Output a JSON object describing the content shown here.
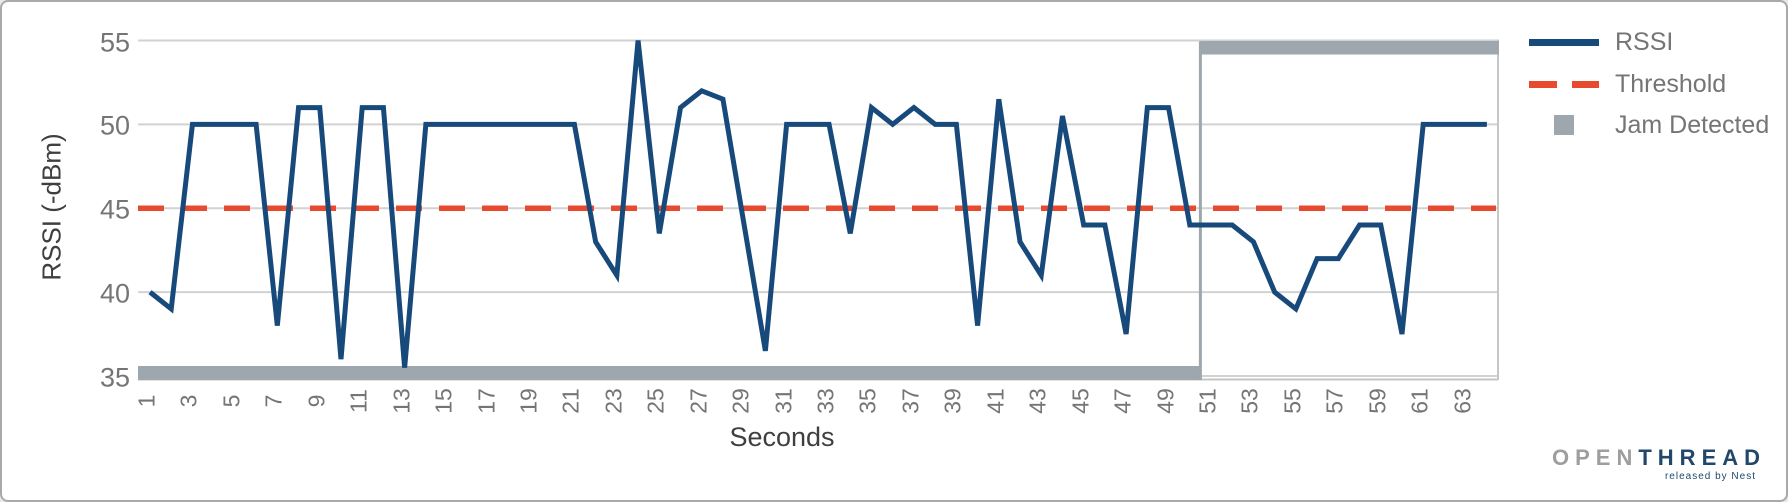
{
  "chart_data": {
    "type": "line",
    "xlabel": "Seconds",
    "ylabel": "RSSI (-dBm)",
    "ylim": [
      35,
      55
    ],
    "yticks": [
      55,
      50,
      45,
      40,
      35
    ],
    "xticks": [
      1,
      3,
      5,
      7,
      9,
      11,
      13,
      15,
      17,
      19,
      21,
      23,
      25,
      27,
      29,
      31,
      33,
      35,
      37,
      39,
      41,
      43,
      45,
      47,
      49,
      51,
      53,
      55,
      57,
      59,
      61,
      63
    ],
    "x_start": 1,
    "grid": "horizontal",
    "legend_position": "right",
    "background": "#ffffff",
    "gridline_color": "#d2d2d2",
    "axis_line_color": "#c6c6c6",
    "tick_text_color": "#757575",
    "series": [
      {
        "name": "RSSI",
        "type": "line",
        "color": "#17497b",
        "x": [
          1,
          2,
          3,
          4,
          5,
          6,
          7,
          8,
          9,
          10,
          11,
          12,
          13,
          14,
          15,
          16,
          17,
          18,
          19,
          20,
          21,
          22,
          23,
          24,
          25,
          26,
          27,
          28,
          29,
          30,
          31,
          32,
          33,
          34,
          35,
          36,
          37,
          38,
          39,
          40,
          41,
          42,
          43,
          44,
          45,
          46,
          47,
          48,
          49,
          50,
          51,
          52,
          53,
          54,
          55,
          56,
          57,
          58,
          59,
          60,
          61,
          62,
          63,
          64
        ],
        "values": [
          40,
          39,
          50,
          50,
          50,
          50,
          38,
          51,
          51,
          36,
          51,
          51,
          35.5,
          50,
          50,
          50,
          50,
          50,
          50,
          50,
          50,
          43,
          41,
          55,
          43.5,
          51,
          52,
          51.5,
          44,
          36.5,
          50,
          50,
          50,
          43.5,
          51,
          50,
          51,
          50,
          50,
          38,
          51.5,
          43,
          41,
          50.5,
          44,
          44,
          37.5,
          51,
          51,
          44,
          44,
          44,
          43,
          40,
          39,
          42,
          42,
          44,
          44,
          37.5,
          50,
          50,
          50,
          50
        ]
      },
      {
        "name": "Threshold",
        "type": "dashed-line",
        "color": "#e84a30",
        "value": 45
      },
      {
        "name": "Jam Detected",
        "type": "step-bar",
        "color": "#9da7ad",
        "false_level": 35,
        "true_level": 55,
        "true_from_second": 51,
        "end_second": 64
      }
    ]
  },
  "legend": {
    "rssi_label": "RSSI",
    "threshold_label": "Threshold",
    "jam_label": "Jam Detected"
  },
  "logo": {
    "part1": "OPEN",
    "part2": "THREAD",
    "tagline": "released by Nest"
  }
}
